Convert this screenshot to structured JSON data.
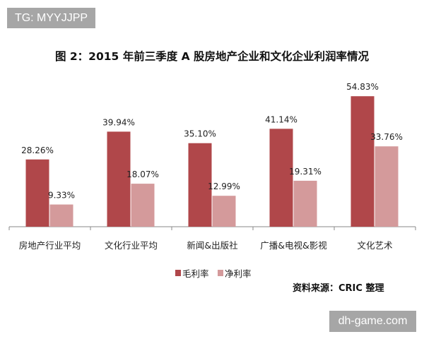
{
  "watermarks": {
    "top_left": "TG: MYYJJPP",
    "bottom_right": "dh-game.com"
  },
  "source": "资料来源：CRIC 整理",
  "colors": {
    "gross": "#b0474a",
    "net": "#d49a9b"
  },
  "chart_data": {
    "type": "bar",
    "title": "图 2：2015 年前三季度 A 股房地产企业和文化企业利润率情况",
    "categories": [
      "房地产行业平均",
      "文化行业平均",
      "新闻&出版社",
      "广播&电视&影视",
      "文化艺术"
    ],
    "series": [
      {
        "name": "毛利率",
        "values": [
          28.26,
          39.94,
          35.1,
          41.14,
          54.83
        ],
        "labels": [
          "28.26%",
          "39.94%",
          "35.10%",
          "41.14%",
          "54.83%"
        ]
      },
      {
        "name": "净利率",
        "values": [
          9.33,
          18.07,
          12.99,
          19.31,
          33.76
        ],
        "labels": [
          "9.33%",
          "18.07%",
          "12.99%",
          "19.31%",
          "33.76%"
        ]
      }
    ],
    "unit": "%",
    "legend": "bottom",
    "grid": false,
    "ylim": [
      0,
      60
    ]
  }
}
